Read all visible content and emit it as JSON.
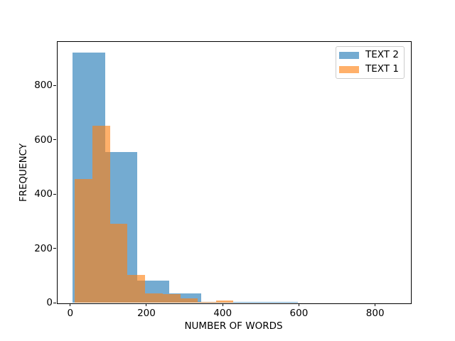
{
  "figure": {
    "background": "#ffffff",
    "xlabel": "NUMBER OF WORDS",
    "ylabel": "FREQUENCY"
  },
  "legend": {
    "items": [
      {
        "label": "TEXT 2",
        "color": "#1f77b4",
        "alpha": 0.62
      },
      {
        "label": "TEXT 1",
        "color": "#ff7f0e",
        "alpha": 0.62
      }
    ]
  },
  "chart_data": {
    "type": "histogram",
    "title": "",
    "xlabel": "NUMBER OF WORDS",
    "ylabel": "FREQUENCY",
    "xlim": [
      -35,
      892
    ],
    "ylim": [
      0,
      963
    ],
    "xticks": [
      0,
      200,
      400,
      600,
      800
    ],
    "yticks": [
      0,
      200,
      400,
      600,
      800
    ],
    "grid": false,
    "legend_position": "upper right",
    "series": [
      {
        "name": "TEXT 2",
        "color": "#1f77b4",
        "alpha": 0.62,
        "bin_edges": [
          6,
          91,
          175,
          259,
          344,
          428,
          513,
          597
        ],
        "counts": [
          920,
          556,
          82,
          33,
          3,
          2,
          2
        ]
      },
      {
        "name": "TEXT 1",
        "color": "#ff7f0e",
        "alpha": 0.62,
        "bin_edges": [
          11,
          58,
          104,
          150,
          196,
          243,
          289,
          335,
          382,
          428
        ],
        "counts": [
          455,
          652,
          291,
          103,
          35,
          31,
          16,
          2,
          8
        ]
      }
    ]
  }
}
